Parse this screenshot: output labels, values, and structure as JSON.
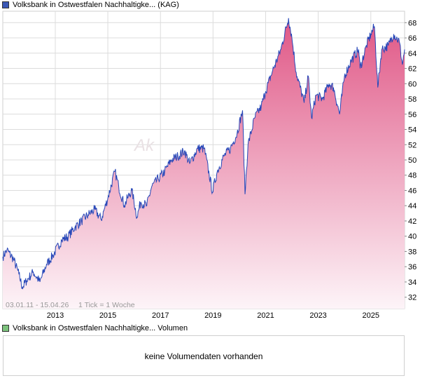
{
  "legend_main": {
    "label": "Volksbank in Ostwestfalen Nachhaltigke... (KAG)",
    "color": "#3a57b5"
  },
  "legend_volume": {
    "label": "Volksbank in Ostwestfalen Nachhaltigke... Volumen",
    "color": "#7cc27c"
  },
  "watermark": "Ak",
  "date_range": "03.01.11 - 15.04.26",
  "tick_info": "1 Tick = 1 Woche",
  "no_volume_text": "keine Volumendaten vorhanden",
  "colors": {
    "line": "#2747b8",
    "fill_top": "#e05786",
    "fill_bottom": "#fdf4f8",
    "grid": "#dcdcdc"
  },
  "chart_data": {
    "type": "area",
    "xlim": [
      "2011-01-03",
      "2026-04-15"
    ],
    "ylim": [
      30.5,
      69.5
    ],
    "x_ticks": [
      "2013",
      "2015",
      "2017",
      "2019",
      "2021",
      "2023",
      "2025"
    ],
    "y_ticks": [
      32,
      34,
      36,
      38,
      40,
      42,
      44,
      46,
      48,
      50,
      52,
      54,
      56,
      58,
      60,
      62,
      64,
      66,
      68
    ],
    "grid": true,
    "series": [
      {
        "values": [
          [
            "2011-01-03",
            37.3
          ],
          [
            "2011-03-01",
            38.2
          ],
          [
            "2011-06-01",
            37.0
          ],
          [
            "2011-08-15",
            35.0
          ],
          [
            "2011-10-01",
            33.3
          ],
          [
            "2011-12-01",
            34.2
          ],
          [
            "2012-03-01",
            35.3
          ],
          [
            "2012-06-01",
            34.0
          ],
          [
            "2012-09-01",
            36.3
          ],
          [
            "2012-12-01",
            37.5
          ],
          [
            "2013-04-01",
            39.5
          ],
          [
            "2013-07-01",
            40.0
          ],
          [
            "2013-10-01",
            41.2
          ],
          [
            "2014-01-01",
            42.0
          ],
          [
            "2014-04-01",
            42.8
          ],
          [
            "2014-07-01",
            43.5
          ],
          [
            "2014-10-01",
            42.2
          ],
          [
            "2015-01-01",
            45.0
          ],
          [
            "2015-04-10",
            48.5
          ],
          [
            "2015-06-01",
            46.5
          ],
          [
            "2015-08-20",
            44.0
          ],
          [
            "2015-10-01",
            45.0
          ],
          [
            "2015-12-01",
            46.0
          ],
          [
            "2016-02-10",
            42.5
          ],
          [
            "2016-04-01",
            44.5
          ],
          [
            "2016-06-25",
            44.0
          ],
          [
            "2016-09-01",
            46.5
          ],
          [
            "2016-12-01",
            47.5
          ],
          [
            "2017-03-01",
            48.5
          ],
          [
            "2017-06-01",
            50.0
          ],
          [
            "2017-09-01",
            50.5
          ],
          [
            "2017-12-01",
            51.2
          ],
          [
            "2018-02-10",
            49.5
          ],
          [
            "2018-06-01",
            51.5
          ],
          [
            "2018-09-01",
            51.5
          ],
          [
            "2018-12-25",
            45.8
          ],
          [
            "2019-03-01",
            48.5
          ],
          [
            "2019-06-01",
            50.5
          ],
          [
            "2019-09-01",
            51.5
          ],
          [
            "2019-12-01",
            53.5
          ],
          [
            "2020-02-15",
            56.5
          ],
          [
            "2020-03-20",
            45.5
          ],
          [
            "2020-05-01",
            52.0
          ],
          [
            "2020-08-01",
            55.5
          ],
          [
            "2020-11-01",
            57.0
          ],
          [
            "2021-01-01",
            59.0
          ],
          [
            "2021-04-01",
            61.5
          ],
          [
            "2021-08-01",
            64.5
          ],
          [
            "2021-11-15",
            68.6
          ],
          [
            "2022-01-01",
            66.0
          ],
          [
            "2022-03-01",
            61.5
          ],
          [
            "2022-06-20",
            57.5
          ],
          [
            "2022-08-15",
            61.0
          ],
          [
            "2022-10-01",
            55.5
          ],
          [
            "2022-12-01",
            58.5
          ],
          [
            "2023-03-01",
            58.0
          ],
          [
            "2023-06-01",
            60.0
          ],
          [
            "2023-08-01",
            59.5
          ],
          [
            "2023-10-25",
            56.0
          ],
          [
            "2024-01-01",
            61.0
          ],
          [
            "2024-04-01",
            63.0
          ],
          [
            "2024-07-15",
            64.5
          ],
          [
            "2024-08-05",
            62.0
          ],
          [
            "2024-11-01",
            65.0
          ],
          [
            "2025-01-01",
            66.5
          ],
          [
            "2025-02-20",
            67.5
          ],
          [
            "2025-04-08",
            59.5
          ],
          [
            "2025-06-01",
            64.5
          ],
          [
            "2025-09-01",
            65.0
          ],
          [
            "2025-11-15",
            66.5
          ],
          [
            "2026-02-01",
            65.5
          ],
          [
            "2026-03-15",
            62.5
          ],
          [
            "2026-04-15",
            64.5
          ]
        ]
      }
    ]
  }
}
